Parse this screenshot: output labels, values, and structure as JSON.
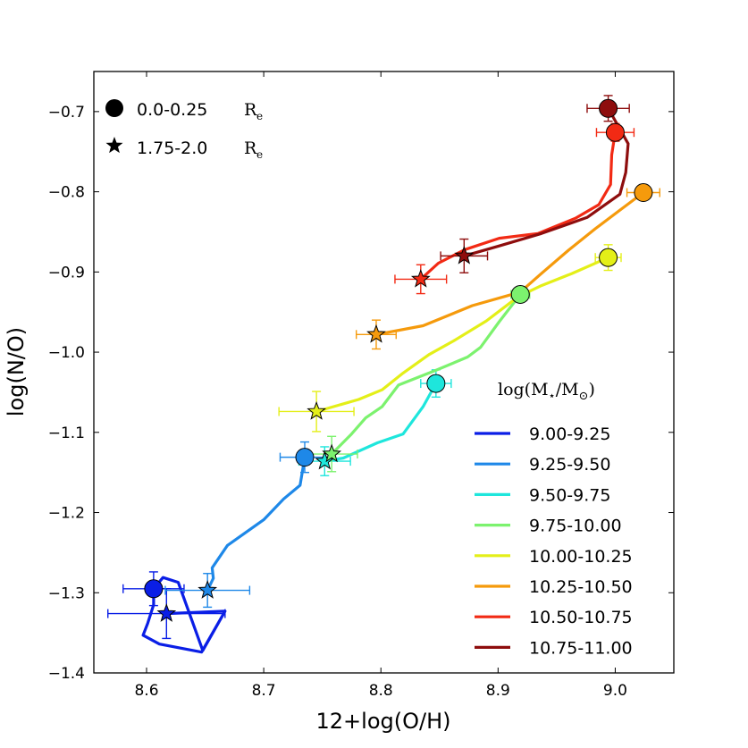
{
  "chart_data": {
    "type": "line",
    "xlabel": "12+log(O/H)",
    "ylabel": "log(N/O)",
    "xlim": [
      8.555,
      9.05
    ],
    "ylim": [
      -1.4,
      -0.65
    ],
    "xticks": [
      "8.6",
      "8.7",
      "8.8",
      "8.9",
      "9.0"
    ],
    "yticks": [
      "−0.7",
      "−0.8",
      "−0.9",
      "−1.0",
      "−1.1",
      "−1.2",
      "−1.3",
      "−1.4"
    ],
    "marker_legend": [
      {
        "marker": "circle",
        "label": "0.0-0.25",
        "unit": "R",
        "unit_sub": "e"
      },
      {
        "marker": "star",
        "label": "1.75-2.0",
        "unit": "R",
        "unit_sub": "e"
      }
    ],
    "series_legend_title": {
      "prefix": "log(M",
      "star": "⋆",
      "mid": "/M",
      "sun": "⊙",
      "suffix": ")"
    },
    "series": [
      {
        "name": "9.00-9.25",
        "color": "#0a1ee6",
        "path": [
          [
            8.667,
            -1.323
          ],
          [
            8.647,
            -1.374
          ],
          [
            8.611,
            -1.364
          ],
          [
            8.597,
            -1.353
          ],
          [
            8.601,
            -1.338
          ],
          [
            8.606,
            -1.315
          ],
          [
            8.606,
            -1.295
          ],
          [
            8.614,
            -1.281
          ],
          [
            8.627,
            -1.287
          ],
          [
            8.648,
            -1.372
          ],
          [
            8.667,
            -1.323
          ],
          [
            8.617,
            -1.326
          ]
        ],
        "circle": {
          "x": 8.606,
          "y": -1.295,
          "xerr": 0.026,
          "yerr": 0.021
        },
        "star": {
          "x": 8.617,
          "y": -1.326,
          "xerr": 0.05,
          "yerr": 0.031
        }
      },
      {
        "name": "9.25-9.50",
        "color": "#1e88e8",
        "path": [
          [
            8.652,
            -1.297
          ],
          [
            8.657,
            -1.282
          ],
          [
            8.656,
            -1.269
          ],
          [
            8.662,
            -1.256
          ],
          [
            8.669,
            -1.241
          ],
          [
            8.7,
            -1.209
          ],
          [
            8.717,
            -1.183
          ],
          [
            8.731,
            -1.166
          ],
          [
            8.735,
            -1.131
          ]
        ],
        "circle": {
          "x": 8.735,
          "y": -1.131,
          "xerr": 0.021,
          "yerr": 0.019
        },
        "star": {
          "x": 8.652,
          "y": -1.297,
          "xerr": 0.036,
          "yerr": 0.021
        }
      },
      {
        "name": "9.50-9.75",
        "color": "#1ee6dc",
        "path": [
          [
            8.752,
            -1.136
          ],
          [
            8.768,
            -1.132
          ],
          [
            8.797,
            -1.113
          ],
          [
            8.819,
            -1.102
          ],
          [
            8.836,
            -1.068
          ],
          [
            8.847,
            -1.039
          ]
        ],
        "circle": {
          "x": 8.847,
          "y": -1.039,
          "xerr": 0.013,
          "yerr": 0.017
        },
        "star": {
          "x": 8.752,
          "y": -1.136,
          "xerr": 0.022,
          "yerr": 0.018
        }
      },
      {
        "name": "9.75-10.00",
        "color": "#7cf26e",
        "path": [
          [
            8.758,
            -1.127
          ],
          [
            8.775,
            -1.102
          ],
          [
            8.787,
            -1.082
          ],
          [
            8.801,
            -1.068
          ],
          [
            8.815,
            -1.041
          ],
          [
            8.848,
            -1.022
          ],
          [
            8.874,
            -1.006
          ],
          [
            8.885,
            -0.994
          ],
          [
            8.901,
            -0.962
          ],
          [
            8.919,
            -0.928
          ]
        ],
        "circle": {
          "x": 8.919,
          "y": -0.928,
          "xerr": 0.008,
          "yerr": 0.008
        },
        "star": {
          "x": 8.758,
          "y": -1.127,
          "xerr": 0.022,
          "yerr": 0.022
        }
      },
      {
        "name": "10.00-10.25",
        "color": "#e4ef18",
        "path": [
          [
            8.745,
            -1.074
          ],
          [
            8.781,
            -1.059
          ],
          [
            8.801,
            -1.047
          ],
          [
            8.819,
            -1.026
          ],
          [
            8.841,
            -1.003
          ],
          [
            8.862,
            -0.986
          ],
          [
            8.89,
            -0.961
          ],
          [
            8.917,
            -0.931
          ],
          [
            8.937,
            -0.917
          ],
          [
            8.963,
            -0.902
          ],
          [
            8.994,
            -0.882
          ]
        ],
        "circle": {
          "x": 8.994,
          "y": -0.882,
          "xerr": 0.011,
          "yerr": 0.016
        },
        "star": {
          "x": 8.745,
          "y": -1.074,
          "xerr": 0.032,
          "yerr": 0.025
        }
      },
      {
        "name": "10.25-10.50",
        "color": "#f59a0c",
        "path": [
          [
            8.796,
            -0.978
          ],
          [
            8.836,
            -0.967
          ],
          [
            8.878,
            -0.942
          ],
          [
            8.919,
            -0.925
          ],
          [
            8.937,
            -0.902
          ],
          [
            8.96,
            -0.873
          ],
          [
            8.983,
            -0.846
          ],
          [
            9.003,
            -0.824
          ],
          [
            9.024,
            -0.801
          ]
        ],
        "circle": {
          "x": 9.024,
          "y": -0.801,
          "xerr": 0.014,
          "yerr": 0.009
        },
        "star": {
          "x": 8.796,
          "y": -0.978,
          "xerr": 0.017,
          "yerr": 0.018
        }
      },
      {
        "name": "10.50-10.75",
        "color": "#f22a14",
        "path": [
          [
            8.834,
            -0.909
          ],
          [
            8.849,
            -0.889
          ],
          [
            8.872,
            -0.872
          ],
          [
            8.901,
            -0.858
          ],
          [
            8.934,
            -0.852
          ],
          [
            8.966,
            -0.833
          ],
          [
            8.986,
            -0.816
          ],
          [
            8.996,
            -0.791
          ],
          [
            8.997,
            -0.754
          ],
          [
            9.0,
            -0.726
          ]
        ],
        "circle": {
          "x": 9.0,
          "y": -0.726,
          "xerr": 0.016,
          "yerr": 0.011
        },
        "star": {
          "x": 8.834,
          "y": -0.909,
          "xerr": 0.022,
          "yerr": 0.018
        }
      },
      {
        "name": "10.75-11.00",
        "color": "#8e0d0d",
        "path": [
          [
            8.871,
            -0.88
          ],
          [
            8.9,
            -0.868
          ],
          [
            8.937,
            -0.852
          ],
          [
            8.976,
            -0.832
          ],
          [
            9.004,
            -0.803
          ],
          [
            9.009,
            -0.776
          ],
          [
            9.011,
            -0.74
          ],
          [
            8.994,
            -0.696
          ]
        ],
        "circle": {
          "x": 8.994,
          "y": -0.696,
          "xerr": 0.018,
          "yerr": 0.016
        },
        "star": {
          "x": 8.871,
          "y": -0.88,
          "xerr": 0.02,
          "yerr": 0.021
        }
      }
    ]
  }
}
